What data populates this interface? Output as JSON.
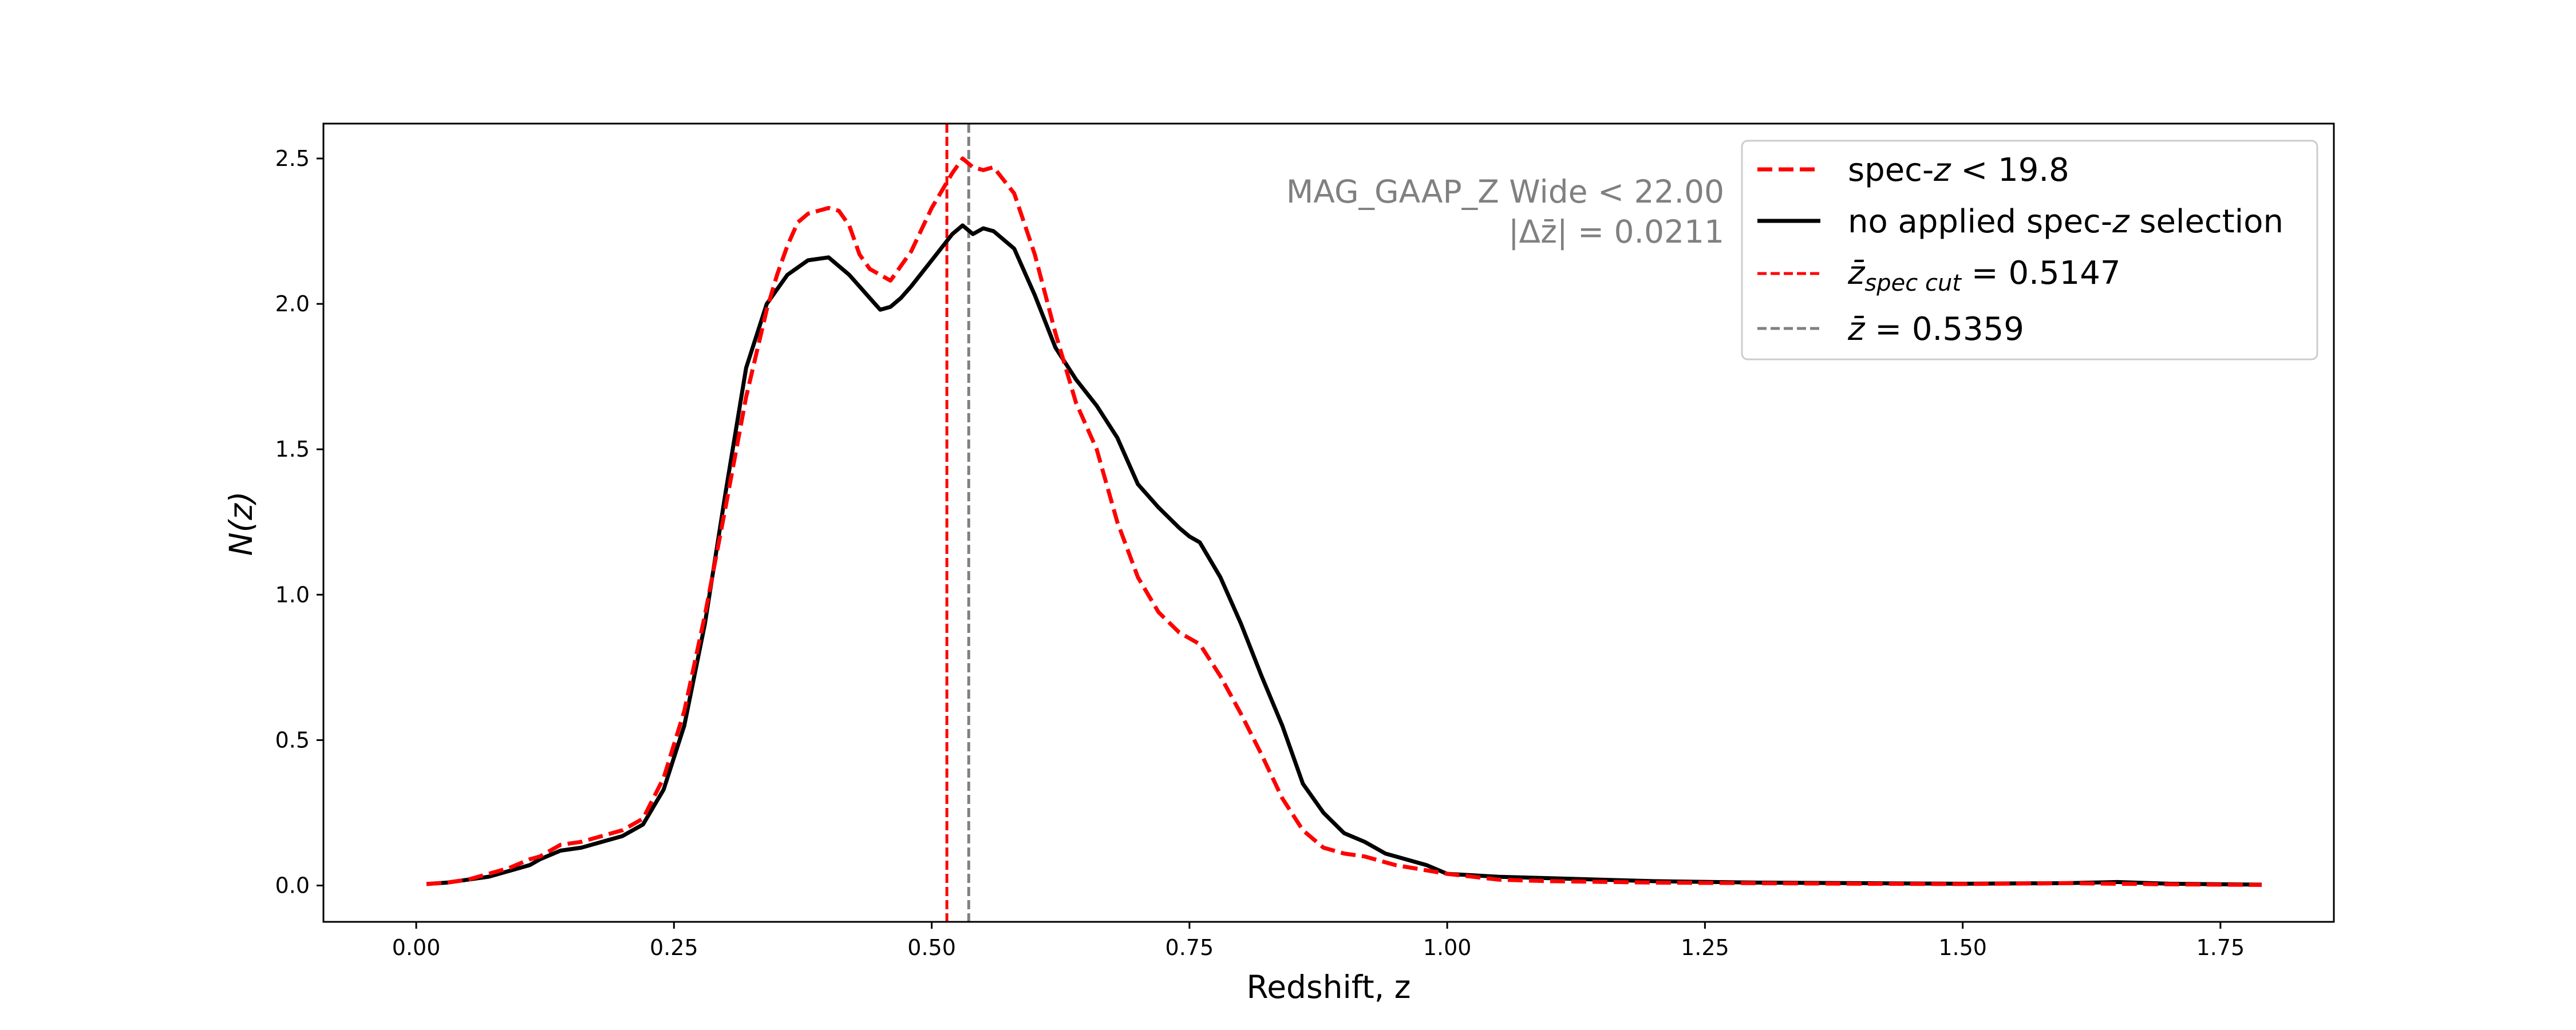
{
  "chart_data": {
    "type": "line",
    "xlabel": "Redshift, z",
    "ylabel": "N(z)",
    "xlim": [
      -0.09,
      1.86
    ],
    "ylim": [
      -0.125,
      2.62
    ],
    "x_ticks": [
      0.0,
      0.25,
      0.5,
      0.75,
      1.0,
      1.25,
      1.5,
      1.75
    ],
    "x_tick_labels": [
      "0.00",
      "0.25",
      "0.50",
      "0.75",
      "1.00",
      "1.25",
      "1.50",
      "1.75"
    ],
    "y_ticks": [
      0.0,
      0.5,
      1.0,
      1.5,
      2.0,
      2.5
    ],
    "y_tick_labels": [
      "0.0",
      "0.5",
      "1.0",
      "1.5",
      "2.0",
      "2.5"
    ],
    "grid": false,
    "legend_position": "top-right",
    "annotations": {
      "line1": "MAG_GAAP_Z Wide < 22.00",
      "line2": "|Δz̄| = 0.0211"
    },
    "series": [
      {
        "name": "spec-z < 19.8",
        "color": "#ff0000",
        "style": "dashed",
        "x": [
          0.01,
          0.03,
          0.05,
          0.07,
          0.09,
          0.11,
          0.12,
          0.14,
          0.16,
          0.18,
          0.2,
          0.22,
          0.24,
          0.26,
          0.28,
          0.3,
          0.32,
          0.34,
          0.35,
          0.36,
          0.37,
          0.38,
          0.4,
          0.41,
          0.42,
          0.43,
          0.44,
          0.46,
          0.48,
          0.5,
          0.52,
          0.53,
          0.54,
          0.55,
          0.56,
          0.58,
          0.6,
          0.62,
          0.64,
          0.66,
          0.68,
          0.7,
          0.72,
          0.74,
          0.75,
          0.76,
          0.78,
          0.8,
          0.82,
          0.84,
          0.86,
          0.88,
          0.9,
          0.92,
          0.95,
          1.0,
          1.05,
          1.1,
          1.2,
          1.3,
          1.4,
          1.5,
          1.6,
          1.7,
          1.79
        ],
        "y": [
          0.005,
          0.01,
          0.02,
          0.04,
          0.06,
          0.09,
          0.1,
          0.14,
          0.15,
          0.17,
          0.19,
          0.23,
          0.37,
          0.6,
          0.93,
          1.3,
          1.68,
          1.98,
          2.1,
          2.2,
          2.28,
          2.31,
          2.33,
          2.32,
          2.27,
          2.17,
          2.12,
          2.08,
          2.18,
          2.33,
          2.45,
          2.5,
          2.47,
          2.46,
          2.47,
          2.38,
          2.17,
          1.9,
          1.66,
          1.5,
          1.25,
          1.06,
          0.94,
          0.87,
          0.85,
          0.83,
          0.72,
          0.59,
          0.45,
          0.3,
          0.19,
          0.13,
          0.11,
          0.1,
          0.07,
          0.04,
          0.02,
          0.015,
          0.01,
          0.008,
          0.006,
          0.005,
          0.008,
          0.004,
          0.002
        ]
      },
      {
        "name": "no applied spec-z selection",
        "color": "#000000",
        "style": "solid",
        "x": [
          0.01,
          0.03,
          0.05,
          0.07,
          0.09,
          0.11,
          0.12,
          0.14,
          0.16,
          0.18,
          0.2,
          0.22,
          0.24,
          0.26,
          0.28,
          0.3,
          0.32,
          0.34,
          0.36,
          0.38,
          0.4,
          0.42,
          0.44,
          0.45,
          0.46,
          0.47,
          0.48,
          0.5,
          0.52,
          0.53,
          0.54,
          0.55,
          0.56,
          0.58,
          0.6,
          0.62,
          0.64,
          0.66,
          0.68,
          0.7,
          0.72,
          0.74,
          0.75,
          0.76,
          0.78,
          0.8,
          0.82,
          0.84,
          0.86,
          0.88,
          0.9,
          0.92,
          0.94,
          0.96,
          0.98,
          1.0,
          1.05,
          1.1,
          1.2,
          1.3,
          1.4,
          1.5,
          1.6,
          1.65,
          1.7,
          1.79
        ],
        "y": [
          0.005,
          0.01,
          0.02,
          0.03,
          0.05,
          0.07,
          0.09,
          0.12,
          0.13,
          0.15,
          0.17,
          0.21,
          0.33,
          0.55,
          0.9,
          1.35,
          1.78,
          2.0,
          2.1,
          2.15,
          2.16,
          2.1,
          2.02,
          1.98,
          1.99,
          2.02,
          2.06,
          2.15,
          2.24,
          2.27,
          2.24,
          2.26,
          2.25,
          2.19,
          2.03,
          1.85,
          1.74,
          1.65,
          1.54,
          1.38,
          1.3,
          1.23,
          1.2,
          1.18,
          1.06,
          0.9,
          0.72,
          0.55,
          0.35,
          0.25,
          0.18,
          0.15,
          0.11,
          0.09,
          0.07,
          0.04,
          0.03,
          0.025,
          0.015,
          0.01,
          0.008,
          0.006,
          0.008,
          0.012,
          0.006,
          0.003
        ]
      }
    ],
    "vlines": [
      {
        "name": "z̄_spec cut = 0.5147",
        "x": 0.5147,
        "color": "#ff0000",
        "style": "dashed"
      },
      {
        "name": "z̄ = 0.5359",
        "x": 0.5359,
        "color": "#808080",
        "style": "dashed"
      }
    ],
    "legend": {
      "entry1": {
        "pre": "spec-",
        "var": "z",
        "post": " < 19.8",
        "color": "#ff0000",
        "style": "dashed"
      },
      "entry2": {
        "pre": "no applied spec-",
        "var": "z",
        "post": " selection",
        "color": "#000000",
        "style": "solid"
      },
      "entry3": {
        "var": "z̄",
        "sub": "spec cut",
        "post": " = 0.5147",
        "color": "#ff0000",
        "style": "dashed"
      },
      "entry4": {
        "var": "z̄",
        "post": " = 0.5359",
        "color": "#808080",
        "style": "dashed"
      }
    }
  }
}
